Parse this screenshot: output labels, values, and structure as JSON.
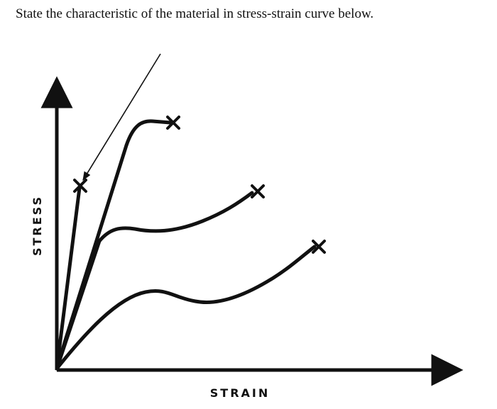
{
  "question": "State the characteristic of the material in stress-strain curve below.",
  "diagram": {
    "xlabel": "STRAIN",
    "ylabel": "STRESS",
    "curves": 4,
    "fracture_marker": "x-mark-icon",
    "pointer_arrow": "arrow-icon"
  }
}
